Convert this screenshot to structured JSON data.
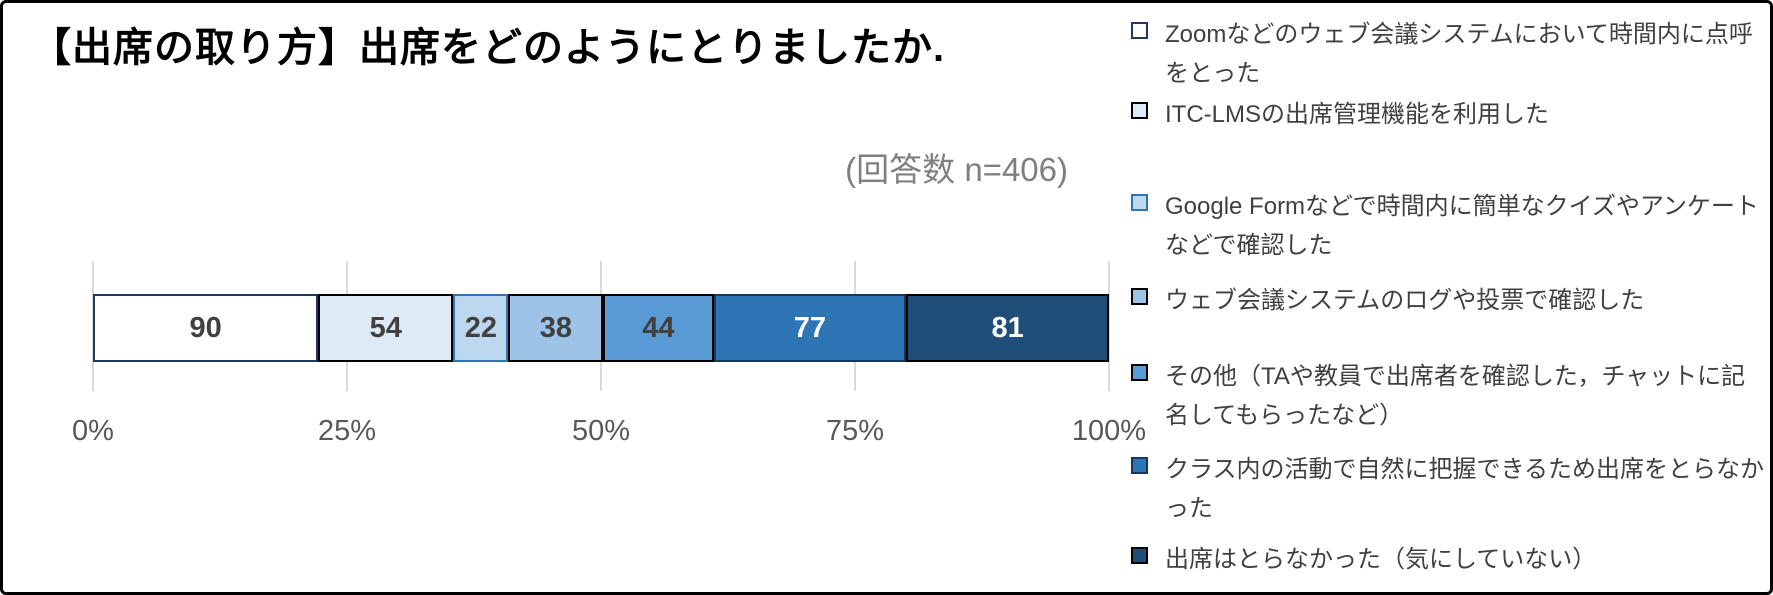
{
  "chart_data": {
    "type": "bar",
    "orientation": "horizontal",
    "stacked": true,
    "title": "【出席の取り方】出席をどのようにとりましたか.",
    "annotation": "(回答数 n=406)",
    "n_total": 406,
    "x_ticks": [
      "0%",
      "25%",
      "50%",
      "75%",
      "100%"
    ],
    "xlim_percent": [
      0,
      100
    ],
    "grid": true,
    "legend_position": "right",
    "series": [
      {
        "name": "Zoomなどのウェブ会議システムにおいて時間内に点呼をとった",
        "value": 90,
        "fill": "#FFFFFF",
        "border": "#1F3864",
        "label_color": "#404040"
      },
      {
        "name": "ITC-LMSの出席管理機能を利用した",
        "value": 54,
        "fill": "#DEEBF7",
        "border": "#000000",
        "label_color": "#404040"
      },
      {
        "name": "Google Formなどで時間内に簡単なクイズやアンケートなどで確認した",
        "value": 22,
        "fill": "#BDD7EE",
        "border": "#2E75B6",
        "label_color": "#404040"
      },
      {
        "name": "ウェブ会議システムのログや投票で確認した",
        "value": 38,
        "fill": "#9DC3E6",
        "border": "#000000",
        "label_color": "#404040"
      },
      {
        "name": "その他（TAや教員で出席者を確認した，チャットに記名してもらったなど）",
        "value": 44,
        "fill": "#5B9BD5",
        "border": "#000000",
        "label_color": "#404040"
      },
      {
        "name": "クラス内の活動で自然に把握できるため出席をとらなかった",
        "value": 77,
        "fill": "#2E75B6",
        "border": "#17375E",
        "label_color": "#FFFFFF"
      },
      {
        "name": "出席はとらなかった（気にしていない）",
        "value": 81,
        "fill": "#1F4E79",
        "border": "#000000",
        "label_color": "#FFFFFF"
      }
    ],
    "colors": {
      "gridline": "#D9D9D9",
      "axis_label": "#595959",
      "annotation_text": "#7F7F7F",
      "legend_text": "#404040",
      "frame_border": "#000000"
    }
  }
}
